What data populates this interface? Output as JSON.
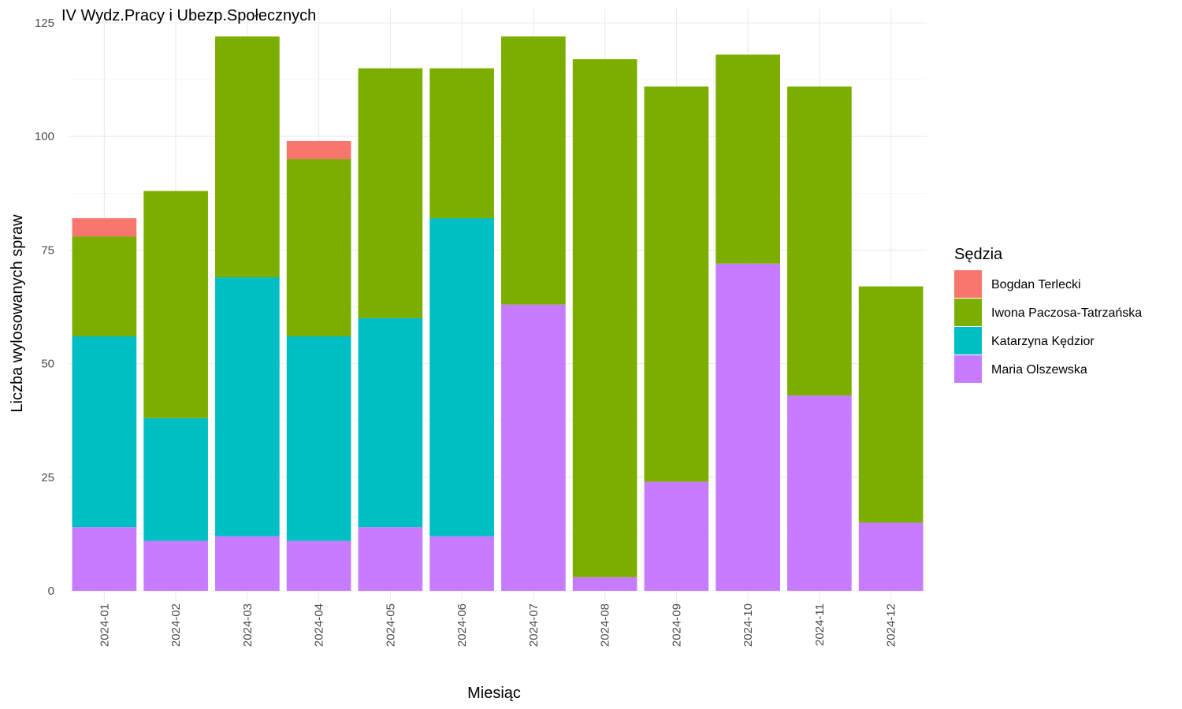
{
  "chart_data": {
    "type": "bar",
    "stacked": true,
    "title": "IV Wydz.Pracy i Ubezp.Społecznych",
    "xlabel": "Miesiąc",
    "ylabel": "Liczba wylosowanych spraw",
    "ylim": [
      0,
      125
    ],
    "yticks": [
      0,
      25,
      50,
      75,
      100,
      125
    ],
    "grid": true,
    "legend_position": "right",
    "legend_title": "Sędzia",
    "categories": [
      "2024-01",
      "2024-02",
      "2024-03",
      "2024-04",
      "2024-05",
      "2024-06",
      "2024-07",
      "2024-08",
      "2024-09",
      "2024-10",
      "2024-11",
      "2024-12"
    ],
    "series": [
      {
        "name": "Bogdan Terlecki",
        "color": "#F8766D",
        "values": [
          4,
          0,
          0,
          4,
          0,
          0,
          0,
          0,
          0,
          0,
          0,
          0
        ]
      },
      {
        "name": "Iwona Paczosa-Tatrzańska",
        "color": "#7CAE00",
        "values": [
          22,
          50,
          53,
          39,
          55,
          33,
          59,
          114,
          87,
          46,
          68,
          52
        ]
      },
      {
        "name": "Katarzyna Kędzior",
        "color": "#00BFC4",
        "values": [
          42,
          27,
          57,
          45,
          46,
          70,
          0,
          0,
          0,
          0,
          0,
          0
        ]
      },
      {
        "name": "Maria Olszewska",
        "color": "#C77CFF",
        "values": [
          14,
          11,
          12,
          11,
          14,
          12,
          63,
          3,
          24,
          72,
          43,
          15
        ]
      }
    ]
  }
}
